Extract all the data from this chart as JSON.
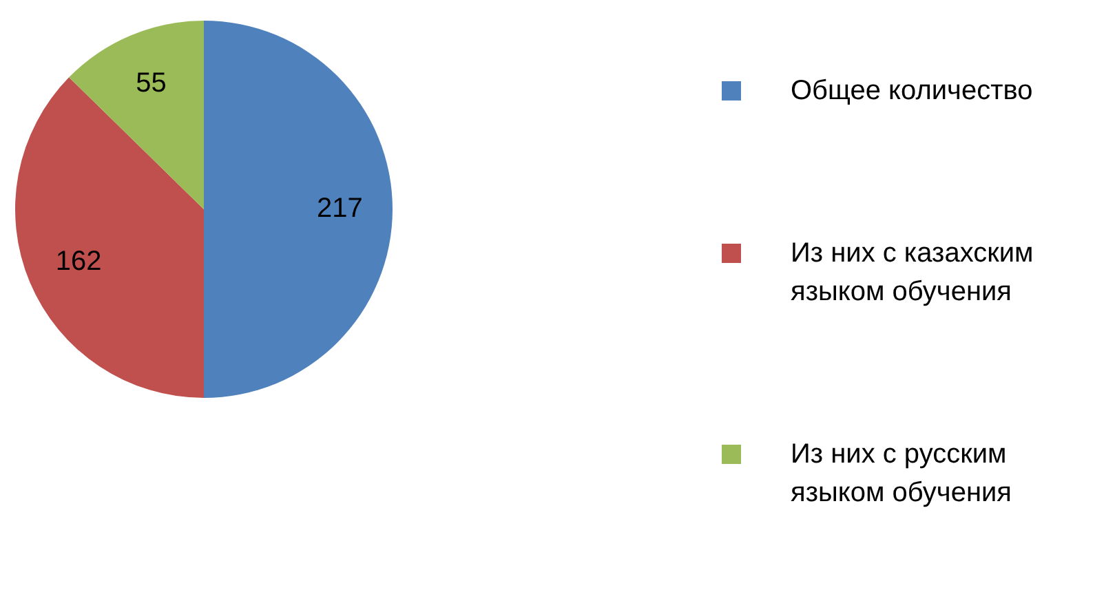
{
  "chart_data": {
    "type": "pie",
    "categories": [
      "Общее количество",
      "Из них с казахским языком обучения",
      "Из них с русским языком обучения"
    ],
    "values": [
      217,
      162,
      55
    ],
    "colors": [
      "#4f81bd",
      "#c0504d",
      "#9bbb59"
    ],
    "data_labels": true,
    "legend": "right"
  }
}
